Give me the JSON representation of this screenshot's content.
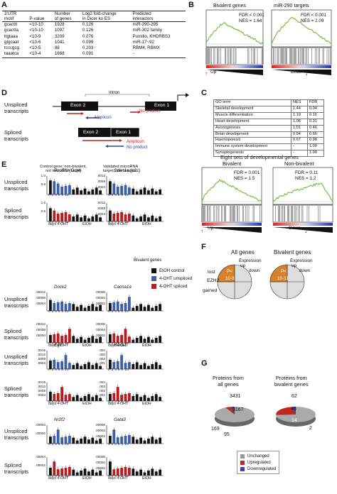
{
  "panel_labels": {
    "a": "A",
    "b": "B",
    "c": "C",
    "d": "D",
    "e": "E",
    "f": "F",
    "g": "G"
  },
  "table_a": {
    "headers": [
      "3'UTR\nmotif",
      "P-value",
      "Number\nof genes",
      "Log2 fold-change\nin Dicer ko ES",
      "Predicted\ninteractors"
    ],
    "rows": [
      [
        "gcacttt",
        "<10-10",
        "1928",
        "0.126",
        "miR-290-295"
      ],
      [
        "gcactta",
        "<10-10",
        "1097",
        "0.126",
        "miR-302 family"
      ],
      [
        "ttgtaaa",
        "<10-9",
        "3209",
        "0.076",
        "Pumilio, KHDRBS3"
      ],
      [
        "gtgcaat",
        "<10-6",
        "1041",
        "0.099",
        "miR-17~92"
      ],
      [
        "tcccgcg",
        "<10-5",
        "88",
        "0.203",
        "RBM4, RBMX"
      ],
      [
        "taaatca",
        "<10-4",
        "1668",
        "0.091",
        "-"
      ]
    ]
  },
  "gsea_b": {
    "panels": [
      {
        "title": "Bivalent genes",
        "fdr": "FDR < 0.001",
        "nes": "NES = 1.64"
      },
      {
        "title": "miR-290 targets",
        "fdr": "FDR < 0.001",
        "nes": "NES = 2.09"
      }
    ],
    "up": "Up",
    "down": "Down"
  },
  "diagram_d": {
    "unspliced_label": "Unspliced\ntranscripts",
    "spliced_label": "Spliced\ntranscripts",
    "intron": "Intron",
    "exon2": "Exon 2",
    "exon1": "Exon 1",
    "amplicon": "Amplicon",
    "no_product": "No product"
  },
  "table_c": {
    "headers": [
      "GO term",
      "NES",
      "FDR"
    ],
    "rows": [
      [
        "Skeletal development",
        "1.44",
        "0.04"
      ],
      [
        "Muscle differentiation",
        "1.19",
        "0.16"
      ],
      [
        "Heart development",
        "1.08",
        "0.31"
      ],
      [
        "Axonogenesis",
        "1.01",
        "0.46"
      ],
      [
        "Brain development",
        "0.94",
        "0.66"
      ],
      [
        "Haemopoiesis",
        "0.67",
        "0.98"
      ],
      [
        "Immune system development",
        "-",
        "1.00"
      ],
      [
        "Synaptogenesis",
        "-",
        "1.00"
      ]
    ]
  },
  "gsea_c": {
    "title": "Eight sets of developmental genes",
    "panels": [
      {
        "title": "Bivalent",
        "fdr": "FDR = 0.001",
        "nes": "NES = 1.5"
      },
      {
        "title": "Non-bivalent",
        "fdr": "FDR = 0.11",
        "nes": "NES = 1.2"
      }
    ],
    "up": "Up",
    "down": "Down"
  },
  "panel_e": {
    "header_left": "Control gene: non-bivalent,\nnot microRNA target",
    "header_right": "Validated microRNA\ntarget, non-bivalent",
    "bivalent_label": "Bivalent genes",
    "unspliced_label": "Unspliced\ntranscripts",
    "spliced_label": "Spliced\ntranscripts",
    "legend": [
      {
        "label": "EtOH control",
        "color": "#111111"
      },
      {
        "label": "4-OHT unspliced",
        "color": "#3d5fa8"
      },
      {
        "label": "4-OHT spliced",
        "color": "#b81c1c"
      }
    ],
    "xaxis": {
      "ticks": "0 2 4 6 8 10",
      "days": "days 4-OHT",
      "etoh": "EtOH"
    },
    "charts": [
      {
        "gene": "Pou5f1 (Oct4)",
        "ticks": [
          "1.0",
          "0.5"
        ]
      },
      {
        "gene": "Cdkn1a (p21)",
        "ticks": [
          ".0012",
          ".0008",
          ".0004"
        ]
      },
      {
        "gene": "Dock2",
        "ticks": [
          ".00012",
          ".00008",
          ".00004"
        ]
      },
      {
        "gene": "Cacna1a",
        "ticks": [
          ".00006",
          ".00004",
          ".00002"
        ]
      },
      {
        "gene": "Egfr",
        "ticks": [
          ".0016",
          ".0012",
          ".0008",
          ".0004"
        ]
      },
      {
        "gene": "Hoxa1",
        "ticks": [
          ".004",
          ".003",
          ".002",
          ".001"
        ]
      },
      {
        "gene": "Nr2f2",
        "ticks": [
          ".00004",
          ".00002"
        ]
      },
      {
        "gene": "Gata3",
        "ticks": [
          ".00006",
          ".00004",
          ".00002"
        ]
      }
    ]
  },
  "panel_f": {
    "all_title": "All genes",
    "biv_title": "Bivalent genes",
    "expression": "Expression",
    "up": "up",
    "down": "down",
    "lost": "lost",
    "ezh2": "EZH2",
    "gained": "gained",
    "p_label": "P<",
    "p_all": "10-8",
    "p_biv": "10-11"
  },
  "panel_g": {
    "all_title": "Proteins from\nall genes",
    "biv_title": "Proteins from\nbivalent genes",
    "all_values": {
      "top": "3431",
      "center": "3167",
      "left": "169",
      "bottom": "95"
    },
    "biv_values": {
      "top": "62",
      "center": "46",
      "red": "14",
      "right": "2"
    },
    "legend": [
      {
        "label": "Unchanged",
        "color": "#999999"
      },
      {
        "label": "Upregulated",
        "color": "#c0281e"
      },
      {
        "label": "Downregulated",
        "color": "#3f3fa8"
      }
    ]
  }
}
